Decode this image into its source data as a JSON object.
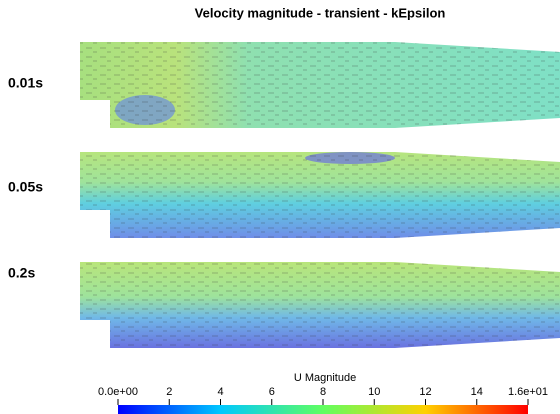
{
  "title": "Velocity magnitude - transient - kEpsilon",
  "panels": [
    {
      "label": "0.01s"
    },
    {
      "label": "0.05s"
    },
    {
      "label": "0.2s"
    }
  ],
  "colorbar": {
    "title": "U Magnitude",
    "range": [
      0,
      16
    ],
    "ticks": [
      {
        "value": 0,
        "label": "0.0e+00"
      },
      2,
      4,
      6,
      8,
      10,
      12,
      14,
      {
        "value": 16,
        "label": "1.6e+01"
      }
    ]
  }
}
